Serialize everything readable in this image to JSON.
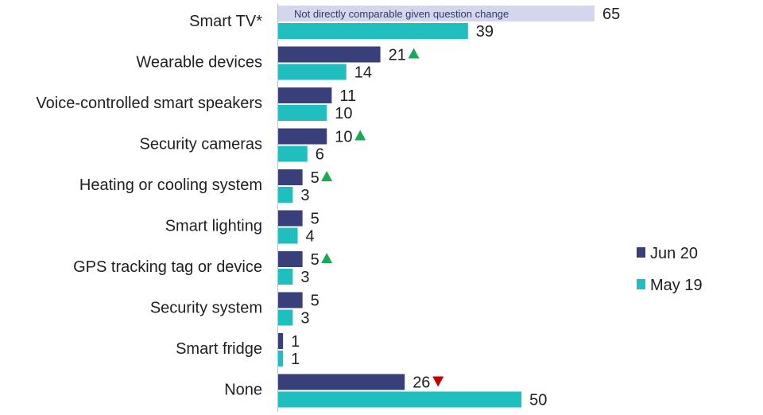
{
  "chart_data": {
    "type": "bar",
    "orientation": "horizontal",
    "categories": [
      "Smart TV*",
      "Wearable devices",
      "Voice-controlled smart speakers",
      "Security cameras",
      "Heating or cooling system",
      "Smart lighting",
      "GPS tracking tag or device",
      "Security system",
      "Smart fridge",
      "None"
    ],
    "series": [
      {
        "name": "Jun 20",
        "color": "#383f7a",
        "values": [
          65,
          21,
          11,
          10,
          5,
          5,
          5,
          5,
          1,
          26
        ],
        "labels": [
          "65",
          "21",
          "11",
          "10",
          "5",
          "5",
          "5",
          "5",
          "1",
          "26"
        ],
        "change": [
          "none",
          "up",
          "none",
          "up",
          "up",
          "none",
          "up",
          "none",
          "none",
          "down"
        ]
      },
      {
        "name": "May 19",
        "color": "#1fbfc0",
        "values": [
          39,
          14,
          10,
          6,
          3,
          4,
          3,
          3,
          1,
          50
        ],
        "labels": [
          "39",
          "14",
          "10",
          "6",
          "3",
          "4",
          "3",
          "3",
          "1",
          "50"
        ]
      }
    ],
    "annotation": {
      "category": "Smart TV*",
      "text": "Not directly comparable given question change",
      "bar_color": "#d3d6ec"
    },
    "xlim": [
      0,
      65
    ],
    "grid": false,
    "legend_position": "right",
    "up_marker_color": "#1aaa55",
    "down_marker_color": "#c00000"
  }
}
